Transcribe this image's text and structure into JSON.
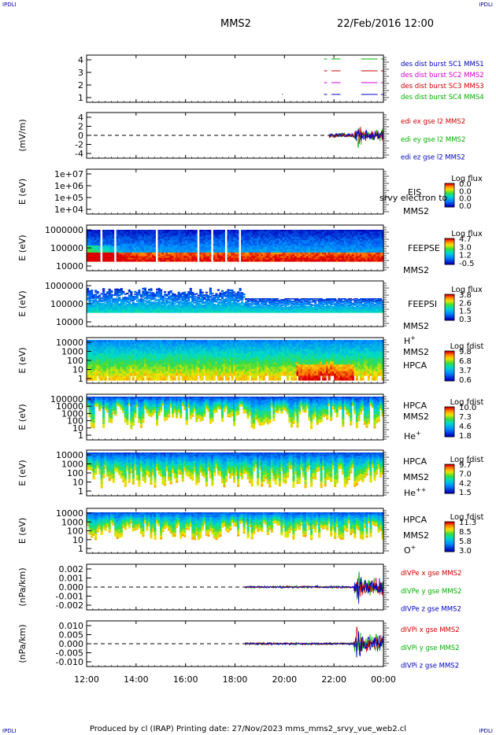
{
  "corner_label": "IPDLI",
  "header": {
    "spacecraft": "MMS2",
    "date": "22/Feb/2016 12:00"
  },
  "footer": {
    "text": "Produced by cl (IRAP)   Printing date: 27/Nov/2023   mms_mms2_srvy_vue_web2.cl"
  },
  "colors": {
    "red": "#d00000",
    "green": "#00b000",
    "blue": "#0000c0",
    "magenta": "#d000d0"
  },
  "chart_data": {
    "type": "multi-panel time series and spectrograms",
    "x_ticks": [
      "12:00",
      "14:00",
      "16:00",
      "18:00",
      "20:00",
      "22:00",
      "00:00"
    ],
    "x_range_hours": [
      12,
      24
    ],
    "panels": [
      {
        "id": "burst",
        "yticks": [
          "4",
          "3",
          "2",
          "1"
        ],
        "ylim": [
          0.5,
          4.5
        ],
        "legend": [
          {
            "label": "des dist burst SC1 MMS1",
            "color": "#0000c0"
          },
          {
            "label": "des dist burst SC2 MMS2",
            "color": "#d000d0"
          },
          {
            "label": "des dist burst SC3 MMS3",
            "color": "#d00000"
          },
          {
            "label": "des dist burst SC4 MMS4",
            "color": "#00b000"
          }
        ]
      },
      {
        "id": "edi",
        "ylabel": "(mV/m)",
        "yticks": [
          "4",
          "2",
          "0",
          "-2",
          "-4"
        ],
        "ylim": [
          -5,
          5
        ],
        "legend": [
          {
            "label": "edi ex gse l2 MMS2",
            "color": "#d00000"
          },
          {
            "label": "edi ey gse l2 MMS2",
            "color": "#00b000"
          },
          {
            "label": "edi ez gse l2 MMS2",
            "color": "#0000c0"
          }
        ]
      },
      {
        "id": "eis",
        "ylabel": "E (eV)",
        "yticks": [
          "1e+07",
          "1e+06",
          "1e+05",
          "1e+04"
        ],
        "lines": [
          "EIS",
          "MMS2"
        ],
        "overlay": "srvy electron to",
        "cb_title": "Log flux",
        "cb_ticks": [
          "0.0",
          "0.0",
          "0.0",
          "0.0"
        ]
      },
      {
        "id": "feepse",
        "ylabel": "E (eV)",
        "yticks": [
          "1000000",
          "100000",
          "10000"
        ],
        "lines": [
          "FEEPSE",
          "MMS2"
        ],
        "cb_title": "Log flux",
        "cb_ticks": [
          "4.7",
          "3.0",
          "1.2",
          "-0.5"
        ]
      },
      {
        "id": "feepsi",
        "ylabel": "E (eV)",
        "yticks": [
          "1000000",
          "100000",
          "10000"
        ],
        "lines": [
          "FEEPSI",
          "MMS2"
        ],
        "cb_title": "Log flux",
        "cb_ticks": [
          "3.8",
          "2.6",
          "1.5",
          "0.3"
        ]
      },
      {
        "id": "hpca_h",
        "ylabel": "E (eV)",
        "yticks": [
          "10000",
          "1000",
          "100",
          "10",
          "1"
        ],
        "lines": [
          "HPCA",
          "MMS2"
        ],
        "species": "H",
        "charge": "+",
        "cb_title": "Log fdist",
        "cb_ticks": [
          "9.8",
          "6.8",
          "3.7",
          "0.6"
        ]
      },
      {
        "id": "hpca_he",
        "ylabel": "E (eV)",
        "yticks": [
          "100000",
          "10000",
          "1000",
          "100",
          "10",
          "1"
        ],
        "lines": [
          "HPCA",
          "MMS2"
        ],
        "species": "He",
        "charge": "+",
        "cb_title": "Log fdist",
        "cb_ticks": [
          "10.0",
          "7.3",
          "4.6",
          "1.8"
        ]
      },
      {
        "id": "hpca_hepp",
        "ylabel": "E (eV)",
        "yticks": [
          "10000",
          "1000",
          "100",
          "10",
          "1"
        ],
        "lines": [
          "HPCA",
          "MMS2"
        ],
        "species": "He",
        "charge": "++",
        "cb_title": "Log fdist",
        "cb_ticks": [
          "9.7",
          "7.0",
          "4.2",
          "1.5"
        ]
      },
      {
        "id": "hpca_o",
        "ylabel": "E (eV)",
        "yticks": [
          "10000",
          "1000",
          "100",
          "10",
          "1"
        ],
        "lines": [
          "HPCA",
          "MMS2"
        ],
        "species": "O",
        "charge": "+",
        "cb_title": "Log fdist",
        "cb_ticks": [
          "11.3",
          "8.5",
          "5.8",
          "3.0"
        ]
      },
      {
        "id": "dpe",
        "ylabel": "(nPa/km)",
        "yticks": [
          "0.002",
          "0.001",
          "0.000",
          "-0.001",
          "-0.002"
        ],
        "ylim": [
          -0.0025,
          0.0025
        ],
        "legend": [
          {
            "label": "dIVPe x gse MMS2",
            "color": "#d00000"
          },
          {
            "label": "dIVPe y gse MMS2",
            "color": "#00b000"
          },
          {
            "label": "dIVPe z gse MMS2",
            "color": "#0000c0"
          }
        ]
      },
      {
        "id": "dpi",
        "ylabel": "(nPa/km)",
        "yticks": [
          "0.010",
          "0.005",
          "0.000",
          "-0.005",
          "-0.010"
        ],
        "ylim": [
          -0.0125,
          0.0125
        ],
        "legend": [
          {
            "label": "dIVPi x gse MMS2",
            "color": "#d00000"
          },
          {
            "label": "dIVPi y gse MMS2",
            "color": "#00b000"
          },
          {
            "label": "dIVPi z gse MMS2",
            "color": "#0000c0"
          }
        ]
      }
    ]
  }
}
